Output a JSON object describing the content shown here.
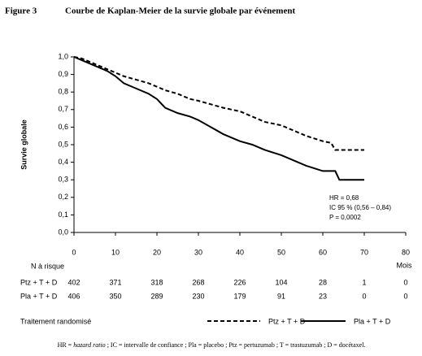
{
  "chart_data": {
    "type": "line",
    "figure_label": "Figure 3",
    "title": "Courbe de Kaplan-Meier de la survie globale par événement",
    "ylabel": "Survie globale",
    "xlabel": "Mois",
    "xlim": [
      0,
      80
    ],
    "ylim": [
      0,
      1.0
    ],
    "xticks": [
      0,
      10,
      20,
      30,
      40,
      50,
      60,
      70,
      80
    ],
    "yticks": [
      {
        "value": 0.0,
        "label": "0,0"
      },
      {
        "value": 0.1,
        "label": "0,1"
      },
      {
        "value": 0.2,
        "label": "0,2"
      },
      {
        "value": 0.3,
        "label": "0,3"
      },
      {
        "value": 0.4,
        "label": "0,4"
      },
      {
        "value": 0.5,
        "label": "0,5"
      },
      {
        "value": 0.6,
        "label": "0,6"
      },
      {
        "value": 0.7,
        "label": "0,7"
      },
      {
        "value": 0.8,
        "label": "0,8"
      },
      {
        "value": 0.9,
        "label": "0,9"
      },
      {
        "value": 1.0,
        "label": "1,0"
      }
    ],
    "series": [
      {
        "name": "Ptz + T + D",
        "color": "#000000",
        "line_style": "dashed",
        "x": [
          0,
          2,
          5,
          8,
          10,
          12,
          15,
          18,
          20,
          22,
          25,
          28,
          30,
          33,
          36,
          40,
          43,
          46,
          50,
          53,
          56,
          60,
          62,
          63,
          70
        ],
        "values": [
          1.0,
          0.99,
          0.96,
          0.93,
          0.91,
          0.89,
          0.87,
          0.85,
          0.83,
          0.81,
          0.79,
          0.76,
          0.75,
          0.73,
          0.71,
          0.69,
          0.66,
          0.63,
          0.61,
          0.58,
          0.55,
          0.52,
          0.51,
          0.47,
          0.47
        ]
      },
      {
        "name": "Pla + T + D",
        "color": "#000000",
        "line_style": "solid",
        "x": [
          0,
          2,
          5,
          8,
          10,
          12,
          15,
          18,
          20,
          22,
          25,
          28,
          30,
          33,
          36,
          40,
          43,
          46,
          50,
          53,
          56,
          60,
          63,
          64,
          70
        ],
        "values": [
          1.0,
          0.98,
          0.95,
          0.92,
          0.89,
          0.85,
          0.82,
          0.79,
          0.76,
          0.71,
          0.68,
          0.66,
          0.64,
          0.6,
          0.56,
          0.52,
          0.5,
          0.47,
          0.44,
          0.41,
          0.38,
          0.35,
          0.35,
          0.3,
          0.3
        ]
      }
    ],
    "annotations": [
      "HR = 0,68",
      "IC 95 % (0,56 – 0,84)",
      "P = 0,0002"
    ],
    "risk_table": {
      "title": "N à risque",
      "rows": [
        {
          "label": "Ptz + T + D",
          "values": [
            402,
            371,
            318,
            268,
            226,
            104,
            28,
            1,
            0
          ]
        },
        {
          "label": "Pla + T + D",
          "values": [
            406,
            350,
            289,
            230,
            179,
            91,
            23,
            0,
            0
          ]
        }
      ]
    },
    "legend_title": "Traitement randomisé",
    "footnote": [
      "HR = ",
      "hazard ratio",
      " ; IC = intervalle de confiance ; Pla = placebo ; Ptz = pertuzumab ; T = trastuzumab ; D = docétaxel."
    ]
  }
}
